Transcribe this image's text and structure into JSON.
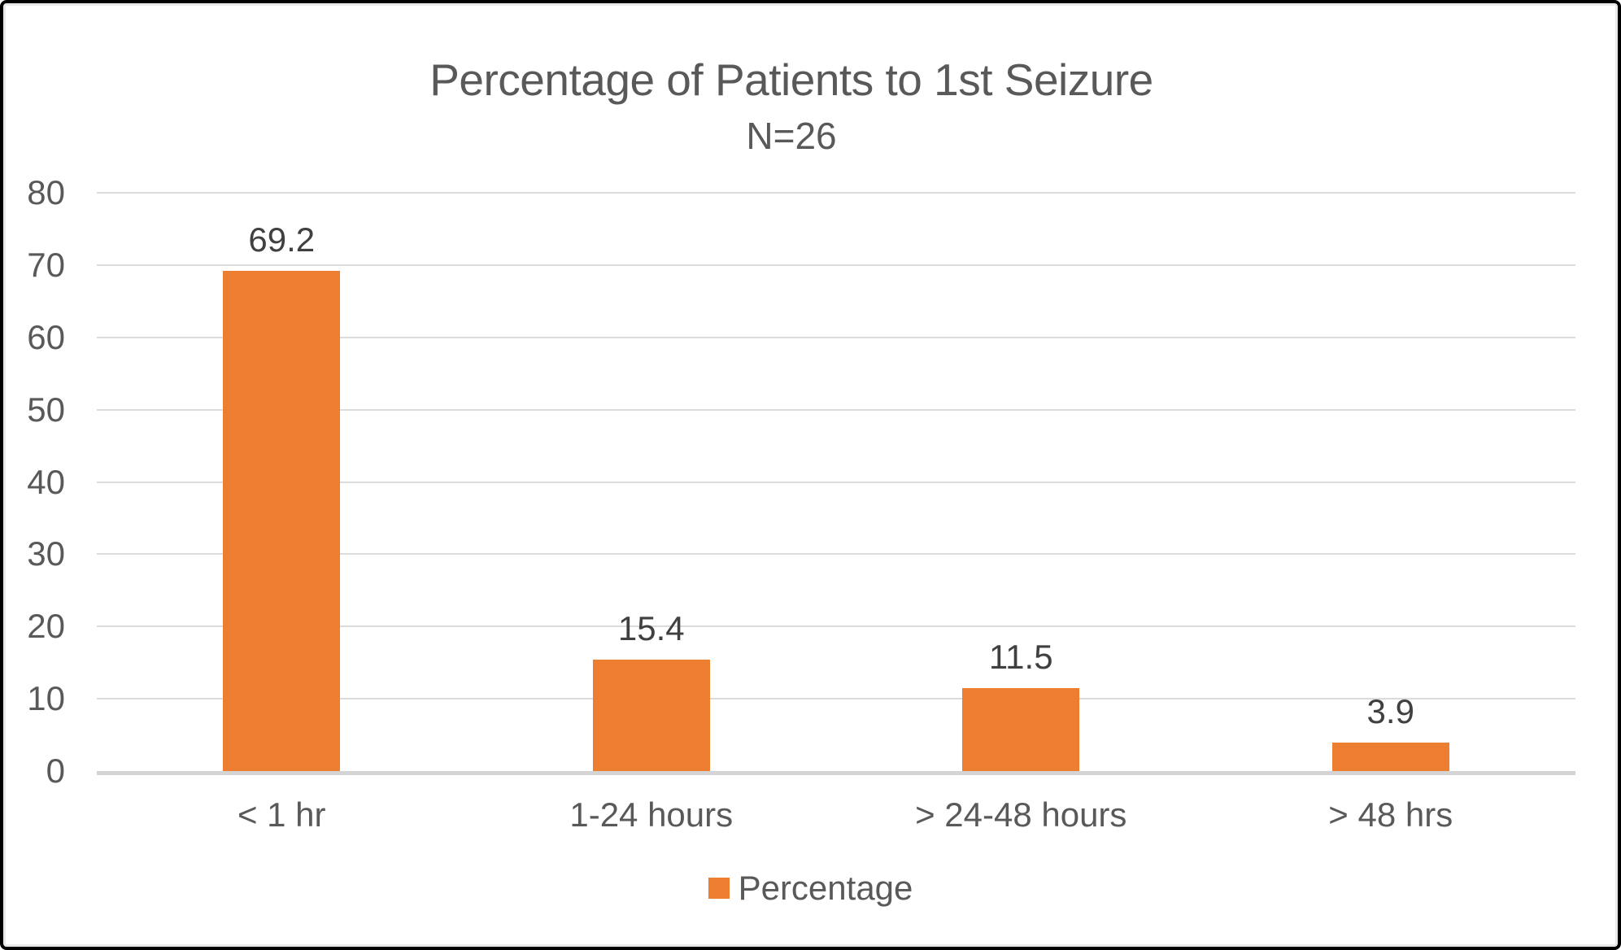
{
  "chart_data": {
    "type": "bar",
    "title": "Percentage of Patients to 1st Seizure",
    "subtitle": "N=26",
    "categories": [
      "< 1 hr",
      "1-24 hours",
      "> 24-48 hours",
      "> 48 hrs"
    ],
    "series": [
      {
        "name": "Percentage",
        "values": [
          69.2,
          15.4,
          11.5,
          3.9
        ]
      }
    ],
    "data_labels": [
      "69.2",
      "15.4",
      "11.5",
      "3.9"
    ],
    "ylim": [
      0,
      80
    ],
    "yticks": [
      "0",
      "10",
      "20",
      "30",
      "40",
      "50",
      "60",
      "70",
      "80"
    ],
    "grid": true,
    "legend_position": "bottom",
    "colors": {
      "bar": "#ED7D31",
      "title_text": "#595959",
      "axis_text": "#595959",
      "data_label_text": "#404040",
      "gridline": "#DBDBDB",
      "axis_line": "#D4D4D4",
      "frame_border": "#000000"
    }
  },
  "legend": {
    "items": [
      {
        "label": "Percentage",
        "color": "#ED7D31"
      }
    ]
  }
}
